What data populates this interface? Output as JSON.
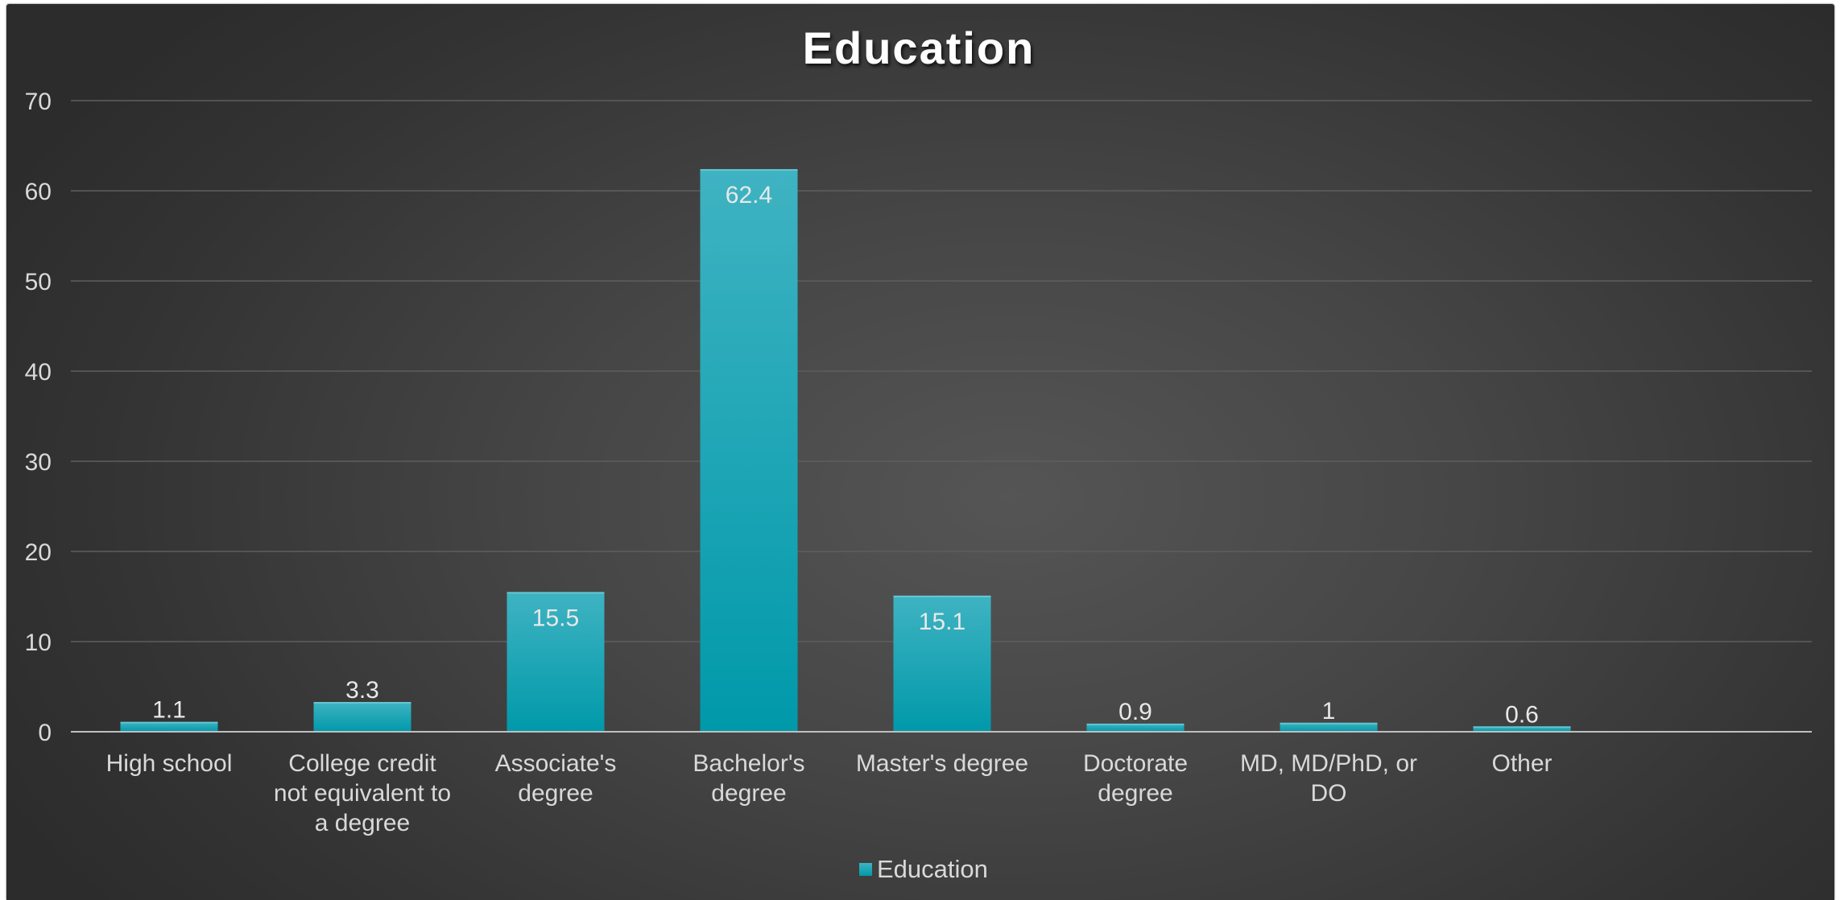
{
  "chart_data": {
    "type": "bar",
    "title": "Education",
    "categories": [
      "High school",
      "College credit not equivalent to a degree",
      "Associate's degree",
      "Bachelor's degree",
      "Master's degree",
      "Doctorate degree",
      "MD, MD/PhD, or DO",
      "Other"
    ],
    "category_lines": [
      [
        "High school"
      ],
      [
        "College credit",
        "not equivalent to",
        "a degree"
      ],
      [
        "Associate's",
        "degree"
      ],
      [
        "Bachelor's",
        "degree"
      ],
      [
        "Master's degree"
      ],
      [
        "Doctorate",
        "degree"
      ],
      [
        "MD, MD/PhD, or",
        "DO"
      ],
      [
        "Other"
      ]
    ],
    "series": [
      {
        "name": "Education",
        "values": [
          1.1,
          3.3,
          15.5,
          62.4,
          15.1,
          0.9,
          1,
          0.6
        ],
        "labels": [
          "1.1",
          "3.3",
          "15.5",
          "62.4",
          "15.1",
          "0.9",
          "1",
          "0.6"
        ]
      }
    ],
    "ylim": [
      0,
      70
    ],
    "yticks": [
      0,
      10,
      20,
      30,
      40,
      50,
      60,
      70
    ],
    "xlabel": "",
    "ylabel": "",
    "grid": true,
    "legend": "bottom-center",
    "colors": {
      "bar_top": "#3fb3c2",
      "bar_bottom": "#0099aa",
      "gridline": "#5e5e5e",
      "axis_line": "#bfbfbf",
      "text": "#d9d9d9",
      "title": "#ffffff"
    }
  }
}
